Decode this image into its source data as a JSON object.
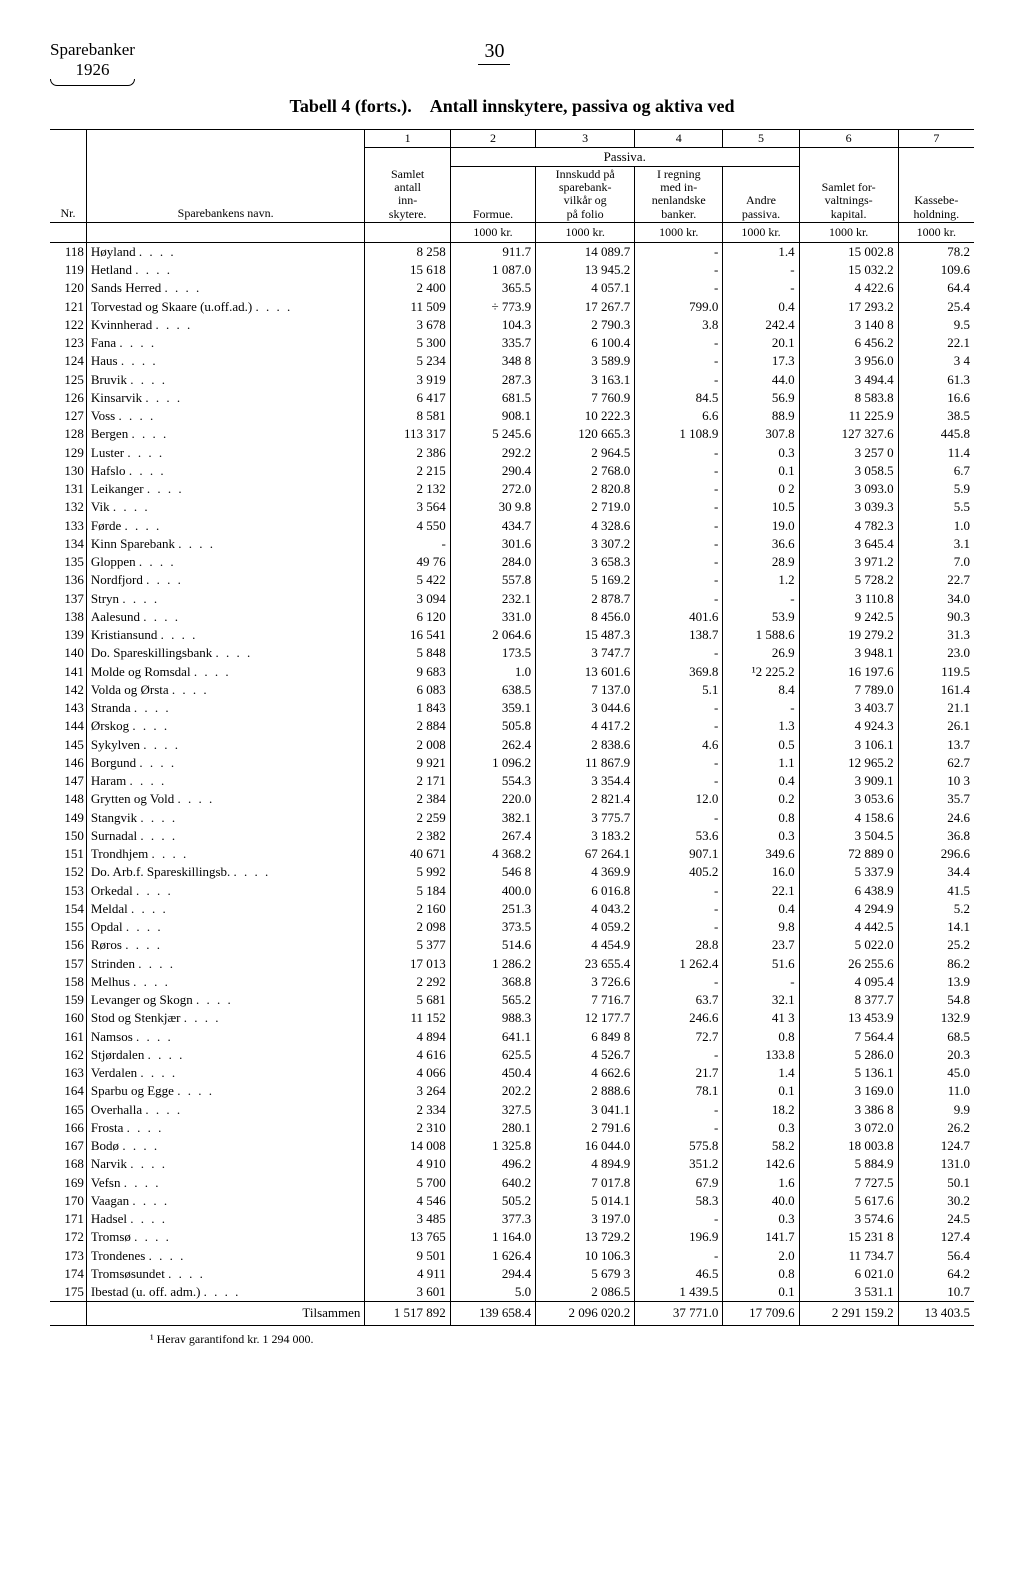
{
  "header": {
    "title_line1": "Sparebanker",
    "title_line2": "1926",
    "page_number": "30"
  },
  "title": {
    "left": "Tabell 4 (forts.).",
    "right": "Antall innskytere, passiva og aktiva ved"
  },
  "columns": {
    "col_nr": "Nr.",
    "col_name": "Sparebankens navn.",
    "col_1": "1",
    "col_2": "2",
    "col_3": "3",
    "col_4": "4",
    "col_5": "5",
    "col_6": "6",
    "col_7": "7",
    "passiva": "Passiva.",
    "samlet_antall": "Samlet antall inn-skytere.",
    "formue": "Formue.",
    "innskudd": "Innskudd på sparebank-vilkår og på folio",
    "iregning": "I regning med in-nenlandske banker.",
    "andre": "Andre passiva.",
    "samlet_for": "Samlet for-valtnings-kapital.",
    "kasse": "Kassebe-holdning.",
    "unit": "1000 kr."
  },
  "rows": [
    {
      "nr": "118",
      "name": "Høyland",
      "c1": "8 258",
      "c2": "911.7",
      "c3": "14 089.7",
      "c4": "-",
      "c5": "1.4",
      "c6": "15 002.8",
      "c7": "78.2"
    },
    {
      "nr": "119",
      "name": "Hetland",
      "c1": "15 618",
      "c2": "1 087.0",
      "c3": "13 945.2",
      "c4": "-",
      "c5": "-",
      "c6": "15 032.2",
      "c7": "109.6"
    },
    {
      "nr": "120",
      "name": "Sands Herred",
      "c1": "2 400",
      "c2": "365.5",
      "c3": "4 057.1",
      "c4": "-",
      "c5": "-",
      "c6": "4 422.6",
      "c7": "64.4"
    },
    {
      "nr": "121",
      "name": "Torvestad og Skaare (u.off.ad.)",
      "c1": "11 509",
      "c2": "÷ 773.9",
      "c3": "17 267.7",
      "c4": "799.0",
      "c5": "0.4",
      "c6": "17 293.2",
      "c7": "25.4"
    },
    {
      "nr": "122",
      "name": "Kvinnherad",
      "c1": "3 678",
      "c2": "104.3",
      "c3": "2 790.3",
      "c4": "3.8",
      "c5": "242.4",
      "c6": "3 140 8",
      "c7": "9.5"
    },
    {
      "nr": "123",
      "name": "Fana",
      "c1": "5 300",
      "c2": "335.7",
      "c3": "6 100.4",
      "c4": "-",
      "c5": "20.1",
      "c6": "6 456.2",
      "c7": "22.1"
    },
    {
      "nr": "124",
      "name": "Haus",
      "c1": "5 234",
      "c2": "348 8",
      "c3": "3 589.9",
      "c4": "-",
      "c5": "17.3",
      "c6": "3 956.0",
      "c7": "3 4"
    },
    {
      "nr": "125",
      "name": "Bruvik",
      "c1": "3 919",
      "c2": "287.3",
      "c3": "3 163.1",
      "c4": "-",
      "c5": "44.0",
      "c6": "3 494.4",
      "c7": "61.3"
    },
    {
      "nr": "126",
      "name": "Kinsarvik",
      "c1": "6 417",
      "c2": "681.5",
      "c3": "7 760.9",
      "c4": "84.5",
      "c5": "56.9",
      "c6": "8 583.8",
      "c7": "16.6"
    },
    {
      "nr": "127",
      "name": "Voss",
      "c1": "8 581",
      "c2": "908.1",
      "c3": "10 222.3",
      "c4": "6.6",
      "c5": "88.9",
      "c6": "11 225.9",
      "c7": "38.5"
    },
    {
      "nr": "128",
      "name": "Bergen",
      "c1": "113 317",
      "c2": "5 245.6",
      "c3": "120 665.3",
      "c4": "1 108.9",
      "c5": "307.8",
      "c6": "127 327.6",
      "c7": "445.8"
    },
    {
      "nr": "129",
      "name": "Luster",
      "c1": "2 386",
      "c2": "292.2",
      "c3": "2 964.5",
      "c4": "-",
      "c5": "0.3",
      "c6": "3 257 0",
      "c7": "11.4"
    },
    {
      "nr": "130",
      "name": "Hafslo",
      "c1": "2 215",
      "c2": "290.4",
      "c3": "2 768.0",
      "c4": "-",
      "c5": "0.1",
      "c6": "3 058.5",
      "c7": "6.7"
    },
    {
      "nr": "131",
      "name": "Leikanger",
      "c1": "2 132",
      "c2": "272.0",
      "c3": "2 820.8",
      "c4": "-",
      "c5": "0 2",
      "c6": "3 093.0",
      "c7": "5.9"
    },
    {
      "nr": "132",
      "name": "Vik",
      "c1": "3 564",
      "c2": "30 9.8",
      "c3": "2 719.0",
      "c4": "-",
      "c5": "10.5",
      "c6": "3 039.3",
      "c7": "5.5"
    },
    {
      "nr": "133",
      "name": "Førde",
      "c1": "4 550",
      "c2": "434.7",
      "c3": "4 328.6",
      "c4": "-",
      "c5": "19.0",
      "c6": "4 782.3",
      "c7": "1.0"
    },
    {
      "nr": "134",
      "name": "Kinn Sparebank",
      "c1": "-",
      "c2": "301.6",
      "c3": "3 307.2",
      "c4": "-",
      "c5": "36.6",
      "c6": "3 645.4",
      "c7": "3.1"
    },
    {
      "nr": "135",
      "name": "Gloppen",
      "c1": "49 76",
      "c2": "284.0",
      "c3": "3 658.3",
      "c4": "-",
      "c5": "28.9",
      "c6": "3 971.2",
      "c7": "7.0"
    },
    {
      "nr": "136",
      "name": "Nordfjord",
      "c1": "5 422",
      "c2": "557.8",
      "c3": "5 169.2",
      "c4": "-",
      "c5": "1.2",
      "c6": "5 728.2",
      "c7": "22.7"
    },
    {
      "nr": "137",
      "name": "Stryn",
      "c1": "3 094",
      "c2": "232.1",
      "c3": "2 878.7",
      "c4": "-",
      "c5": "-",
      "c6": "3 110.8",
      "c7": "34.0"
    },
    {
      "nr": "138",
      "name": "Aalesund",
      "c1": "6 120",
      "c2": "331.0",
      "c3": "8 456.0",
      "c4": "401.6",
      "c5": "53.9",
      "c6": "9 242.5",
      "c7": "90.3"
    },
    {
      "nr": "139",
      "name": "Kristiansund",
      "c1": "16 541",
      "c2": "2 064.6",
      "c3": "15 487.3",
      "c4": "138.7",
      "c5": "1 588.6",
      "c6": "19 279.2",
      "c7": "31.3"
    },
    {
      "nr": "140",
      "name": "Do. Spareskillingsbank",
      "c1": "5 848",
      "c2": "173.5",
      "c3": "3 747.7",
      "c4": "-",
      "c5": "26.9",
      "c6": "3 948.1",
      "c7": "23.0"
    },
    {
      "nr": "141",
      "name": "Molde og Romsdal",
      "c1": "9 683",
      "c2": "1.0",
      "c3": "13 601.6",
      "c4": "369.8",
      "c5": "¹2 225.2",
      "c6": "16 197.6",
      "c7": "119.5"
    },
    {
      "nr": "142",
      "name": "Volda og Ørsta",
      "c1": "6 083",
      "c2": "638.5",
      "c3": "7 137.0",
      "c4": "5.1",
      "c5": "8.4",
      "c6": "7 789.0",
      "c7": "161.4"
    },
    {
      "nr": "143",
      "name": "Stranda",
      "c1": "1 843",
      "c2": "359.1",
      "c3": "3 044.6",
      "c4": "-",
      "c5": "-",
      "c6": "3 403.7",
      "c7": "21.1"
    },
    {
      "nr": "144",
      "name": "Ørskog",
      "c1": "2 884",
      "c2": "505.8",
      "c3": "4 417.2",
      "c4": "-",
      "c5": "1.3",
      "c6": "4 924.3",
      "c7": "26.1"
    },
    {
      "nr": "145",
      "name": "Sykylven",
      "c1": "2 008",
      "c2": "262.4",
      "c3": "2 838.6",
      "c4": "4.6",
      "c5": "0.5",
      "c6": "3 106.1",
      "c7": "13.7"
    },
    {
      "nr": "146",
      "name": "Borgund",
      "c1": "9 921",
      "c2": "1 096.2",
      "c3": "11 867.9",
      "c4": "-",
      "c5": "1.1",
      "c6": "12 965.2",
      "c7": "62.7"
    },
    {
      "nr": "147",
      "name": "Haram",
      "c1": "2 171",
      "c2": "554.3",
      "c3": "3 354.4",
      "c4": "-",
      "c5": "0.4",
      "c6": "3 909.1",
      "c7": "10 3"
    },
    {
      "nr": "148",
      "name": "Grytten og Vold",
      "c1": "2 384",
      "c2": "220.0",
      "c3": "2 821.4",
      "c4": "12.0",
      "c5": "0.2",
      "c6": "3 053.6",
      "c7": "35.7"
    },
    {
      "nr": "149",
      "name": "Stangvik",
      "c1": "2 259",
      "c2": "382.1",
      "c3": "3 775.7",
      "c4": "-",
      "c5": "0.8",
      "c6": "4 158.6",
      "c7": "24.6"
    },
    {
      "nr": "150",
      "name": "Surnadal",
      "c1": "2 382",
      "c2": "267.4",
      "c3": "3 183.2",
      "c4": "53.6",
      "c5": "0.3",
      "c6": "3 504.5",
      "c7": "36.8"
    },
    {
      "nr": "151",
      "name": "Trondhjem",
      "c1": "40 671",
      "c2": "4 368.2",
      "c3": "67 264.1",
      "c4": "907.1",
      "c5": "349.6",
      "c6": "72 889 0",
      "c7": "296.6"
    },
    {
      "nr": "152",
      "name": "Do. Arb.f. Spareskillingsb.",
      "c1": "5 992",
      "c2": "546 8",
      "c3": "4 369.9",
      "c4": "405.2",
      "c5": "16.0",
      "c6": "5 337.9",
      "c7": "34.4"
    },
    {
      "nr": "153",
      "name": "Orkedal",
      "c1": "5 184",
      "c2": "400.0",
      "c3": "6 016.8",
      "c4": "-",
      "c5": "22.1",
      "c6": "6 438.9",
      "c7": "41.5"
    },
    {
      "nr": "154",
      "name": "Meldal",
      "c1": "2 160",
      "c2": "251.3",
      "c3": "4 043.2",
      "c4": "-",
      "c5": "0.4",
      "c6": "4 294.9",
      "c7": "5.2"
    },
    {
      "nr": "155",
      "name": "Opdal",
      "c1": "2 098",
      "c2": "373.5",
      "c3": "4 059.2",
      "c4": "-",
      "c5": "9.8",
      "c6": "4 442.5",
      "c7": "14.1"
    },
    {
      "nr": "156",
      "name": "Røros",
      "c1": "5 377",
      "c2": "514.6",
      "c3": "4 454.9",
      "c4": "28.8",
      "c5": "23.7",
      "c6": "5 022.0",
      "c7": "25.2"
    },
    {
      "nr": "157",
      "name": "Strinden",
      "c1": "17 013",
      "c2": "1 286.2",
      "c3": "23 655.4",
      "c4": "1 262.4",
      "c5": "51.6",
      "c6": "26 255.6",
      "c7": "86.2"
    },
    {
      "nr": "158",
      "name": "Melhus",
      "c1": "2 292",
      "c2": "368.8",
      "c3": "3 726.6",
      "c4": "-",
      "c5": "-",
      "c6": "4 095.4",
      "c7": "13.9"
    },
    {
      "nr": "159",
      "name": "Levanger og Skogn",
      "c1": "5 681",
      "c2": "565.2",
      "c3": "7 716.7",
      "c4": "63.7",
      "c5": "32.1",
      "c6": "8 377.7",
      "c7": "54.8"
    },
    {
      "nr": "160",
      "name": "Stod og Stenkjær",
      "c1": "11 152",
      "c2": "988.3",
      "c3": "12 177.7",
      "c4": "246.6",
      "c5": "41 3",
      "c6": "13 453.9",
      "c7": "132.9"
    },
    {
      "nr": "161",
      "name": "Namsos",
      "c1": "4 894",
      "c2": "641.1",
      "c3": "6 849 8",
      "c4": "72.7",
      "c5": "0.8",
      "c6": "7 564.4",
      "c7": "68.5"
    },
    {
      "nr": "162",
      "name": "Stjørdalen",
      "c1": "4 616",
      "c2": "625.5",
      "c3": "4 526.7",
      "c4": "-",
      "c5": "133.8",
      "c6": "5 286.0",
      "c7": "20.3"
    },
    {
      "nr": "163",
      "name": "Verdalen",
      "c1": "4 066",
      "c2": "450.4",
      "c3": "4 662.6",
      "c4": "21.7",
      "c5": "1.4",
      "c6": "5 136.1",
      "c7": "45.0"
    },
    {
      "nr": "164",
      "name": "Sparbu og Egge",
      "c1": "3 264",
      "c2": "202.2",
      "c3": "2 888.6",
      "c4": "78.1",
      "c5": "0.1",
      "c6": "3 169.0",
      "c7": "11.0"
    },
    {
      "nr": "165",
      "name": "Overhalla",
      "c1": "2 334",
      "c2": "327.5",
      "c3": "3 041.1",
      "c4": "-",
      "c5": "18.2",
      "c6": "3 386 8",
      "c7": "9.9"
    },
    {
      "nr": "166",
      "name": "Frosta",
      "c1": "2 310",
      "c2": "280.1",
      "c3": "2 791.6",
      "c4": "-",
      "c5": "0.3",
      "c6": "3 072.0",
      "c7": "26.2"
    },
    {
      "nr": "167",
      "name": "Bodø",
      "c1": "14 008",
      "c2": "1 325.8",
      "c3": "16 044.0",
      "c4": "575.8",
      "c5": "58.2",
      "c6": "18 003.8",
      "c7": "124.7"
    },
    {
      "nr": "168",
      "name": "Narvik",
      "c1": "4 910",
      "c2": "496.2",
      "c3": "4 894.9",
      "c4": "351.2",
      "c5": "142.6",
      "c6": "5 884.9",
      "c7": "131.0"
    },
    {
      "nr": "169",
      "name": "Vefsn",
      "c1": "5 700",
      "c2": "640.2",
      "c3": "7 017.8",
      "c4": "67.9",
      "c5": "1.6",
      "c6": "7 727.5",
      "c7": "50.1"
    },
    {
      "nr": "170",
      "name": "Vaagan",
      "c1": "4 546",
      "c2": "505.2",
      "c3": "5 014.1",
      "c4": "58.3",
      "c5": "40.0",
      "c6": "5 617.6",
      "c7": "30.2"
    },
    {
      "nr": "171",
      "name": "Hadsel",
      "c1": "3 485",
      "c2": "377.3",
      "c3": "3 197.0",
      "c4": "-",
      "c5": "0.3",
      "c6": "3 574.6",
      "c7": "24.5"
    },
    {
      "nr": "172",
      "name": "Tromsø",
      "c1": "13 765",
      "c2": "1 164.0",
      "c3": "13 729.2",
      "c4": "196.9",
      "c5": "141.7",
      "c6": "15 231 8",
      "c7": "127.4"
    },
    {
      "nr": "173",
      "name": "Trondenes",
      "c1": "9 501",
      "c2": "1 626.4",
      "c3": "10 106.3",
      "c4": "-",
      "c5": "2.0",
      "c6": "11 734.7",
      "c7": "56.4"
    },
    {
      "nr": "174",
      "name": "Tromsøsundet",
      "c1": "4 911",
      "c2": "294.4",
      "c3": "5 679 3",
      "c4": "46.5",
      "c5": "0.8",
      "c6": "6 021.0",
      "c7": "64.2"
    },
    {
      "nr": "175",
      "name": "Ibestad (u. off. adm.)",
      "c1": "3 601",
      "c2": "5.0",
      "c3": "2 086.5",
      "c4": "1 439.5",
      "c5": "0.1",
      "c6": "3 531.1",
      "c7": "10.7"
    }
  ],
  "total": {
    "label": "Tilsammen",
    "c1": "1 517 892",
    "c2": "139 658.4",
    "c3": "2 096 020.2",
    "c4": "37 771.0",
    "c5": "17 709.6",
    "c6": "2 291 159.2",
    "c7": "13 403.5"
  },
  "footnote": "¹ Herav garantifond kr. 1 294 000."
}
